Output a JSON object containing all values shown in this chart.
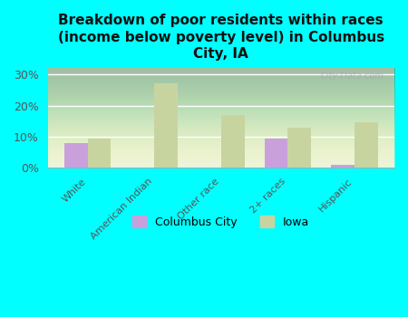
{
  "title": "Breakdown of poor residents within races\n(income below poverty level) in Columbus\nCity, IA",
  "categories": [
    "White",
    "American Indian",
    "Other race",
    "2+ races",
    "Hispanic"
  ],
  "columbus_city_values": [
    8.0,
    0.0,
    0.0,
    9.5,
    1.0
  ],
  "iowa_values": [
    9.5,
    27.0,
    17.0,
    13.0,
    14.5
  ],
  "columbus_city_color": "#c9a0dc",
  "iowa_color": "#c8d4a0",
  "background_color": "#00ffff",
  "legend_labels": [
    "Columbus City",
    "Iowa"
  ],
  "ylim": [
    0,
    32
  ],
  "yticks": [
    0,
    10,
    20,
    30
  ],
  "ytick_labels": [
    "0%",
    "10%",
    "20%",
    "30%"
  ],
  "bar_width": 0.35,
  "title_fontsize": 11,
  "watermark": "City-Data.com"
}
